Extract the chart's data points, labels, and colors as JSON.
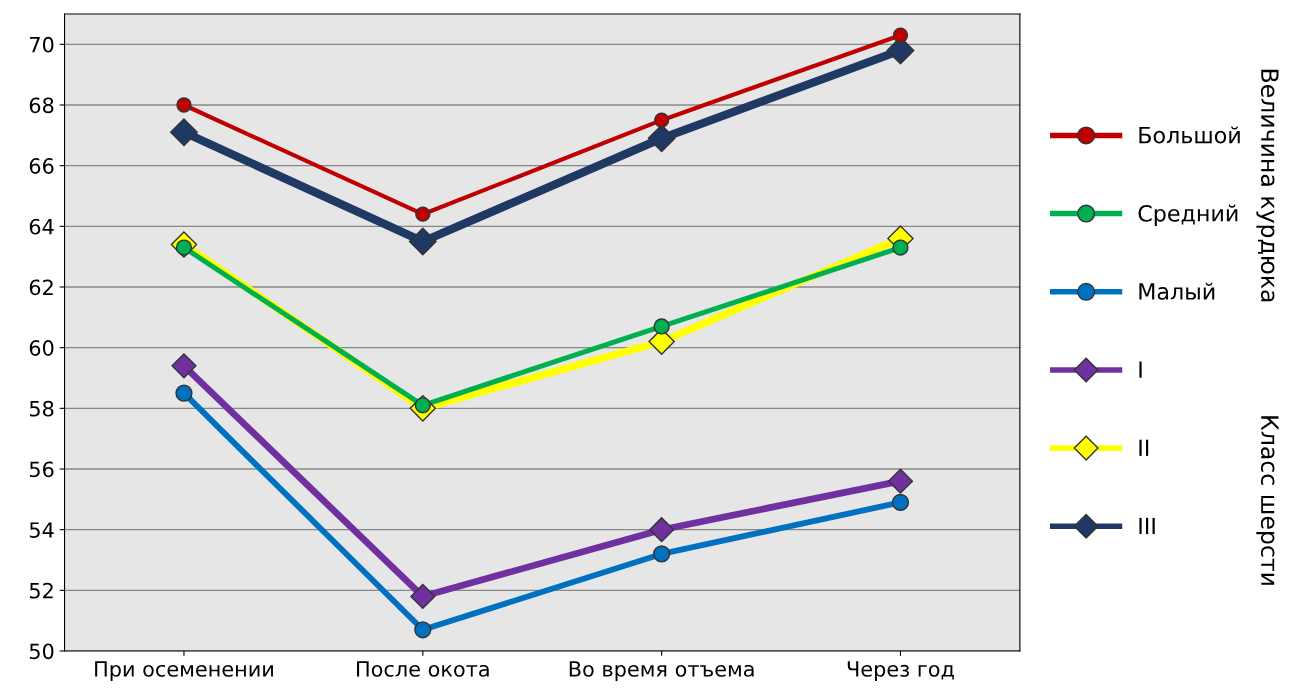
{
  "chart_data": {
    "type": "line",
    "categories": [
      "При осеменении",
      "После окота",
      "Во время отъема",
      "Через год"
    ],
    "series": [
      {
        "name": "Большой",
        "color": "#c00000",
        "marker": "circle",
        "values": [
          68.0,
          64.4,
          67.5,
          70.3
        ]
      },
      {
        "name": "Средний",
        "color": "#00b050",
        "marker": "circle",
        "values": [
          63.3,
          58.1,
          60.7,
          63.3
        ]
      },
      {
        "name": "Малый",
        "color": "#0070c0",
        "marker": "circle",
        "values": [
          58.5,
          50.7,
          53.2,
          54.9
        ]
      },
      {
        "name": "I",
        "color": "#7030a0",
        "marker": "diamond",
        "values": [
          59.4,
          51.8,
          54.0,
          55.6
        ]
      },
      {
        "name": "II",
        "color": "#ffff00",
        "marker": "diamond",
        "values": [
          63.4,
          58.0,
          60.2,
          63.6
        ]
      },
      {
        "name": "III",
        "color": "#1f3864",
        "marker": "diamond",
        "values": [
          67.1,
          63.5,
          66.9,
          69.8
        ]
      }
    ],
    "ylim": [
      50,
      71
    ],
    "yticks": [
      50,
      52,
      54,
      56,
      58,
      60,
      62,
      64,
      66,
      68,
      70
    ],
    "grid": "y",
    "legend": "right",
    "line_style": "solid",
    "annotations": [
      "Величина курдюка",
      "Класс шерсти"
    ]
  }
}
